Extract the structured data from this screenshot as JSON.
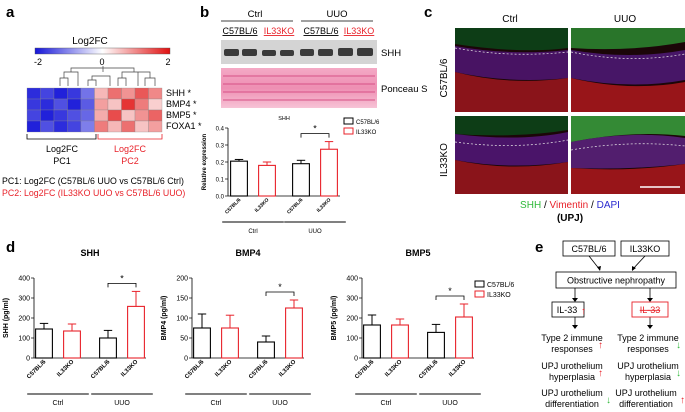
{
  "panel_labels": [
    "a",
    "b",
    "c",
    "d",
    "e"
  ],
  "colors": {
    "red": "#e8222a",
    "blue": "#2b2bd0",
    "green": "#2fb93a",
    "black": "#000000"
  },
  "panel_a": {
    "colorbar_title": "Log2FC",
    "colorbar_ticks": [
      "-2",
      "0",
      "2"
    ],
    "genes": [
      "SHH *",
      "BMP4 *",
      "BMP5 *",
      "FOXA1 *"
    ],
    "pc1": [
      "Log2FC",
      "PC1"
    ],
    "pc2": [
      "Log2FC",
      "PC2"
    ],
    "legend_pc1": "PC1: Log2FC (C57BL/6 UUO vs C57BL/6 Ctrl)",
    "legend_pc2": "PC2: Log2FC (IL33KO UUO vs C57BL/6 UUO)"
  },
  "panel_b": {
    "groups": [
      "Ctrl",
      "UUO"
    ],
    "lanes": [
      "C57BL/6",
      "IL33KO",
      "C57BL/6",
      "IL33KO"
    ],
    "band_labels": [
      "SHH",
      "Ponceau S"
    ]
  },
  "panel_c": {
    "cols": [
      "Ctrl",
      "UUO"
    ],
    "rows": [
      "C57BL/6",
      "IL33KO"
    ],
    "caption_parts": [
      "SHH",
      " / ",
      "Vimentin",
      " / ",
      "DAPI"
    ],
    "caption2": "(UPJ)"
  },
  "panel_e": {
    "top": [
      "C57BL/6",
      "IL33KO"
    ],
    "mid": "Obstructive nephropathy",
    "il33": [
      "IL-33",
      "IL-33"
    ],
    "rows": [
      [
        "Type 2 immune",
        "responses"
      ],
      [
        "UPJ urothelium",
        "hyperplasia"
      ],
      [
        "UPJ urothelium",
        "differentiation"
      ]
    ]
  },
  "chart_data": [
    {
      "type": "bar",
      "title": "SHH",
      "ylabel": "Relative expression",
      "categories": [
        "C57BL/6",
        "IL33KO",
        "C57BL/6",
        "IL33KO"
      ],
      "groups": [
        "Ctrl",
        "UUO"
      ],
      "legend": [
        "C57BL/6",
        "IL33KO"
      ],
      "values": [
        0.205,
        0.18,
        0.19,
        0.275
      ],
      "errors": [
        0.01,
        0.02,
        0.02,
        0.045
      ],
      "ylim": [
        0,
        0.4
      ],
      "yticks": [
        "0.0",
        "0.1",
        "0.2",
        "0.3",
        "0.4"
      ],
      "significance": "*"
    },
    {
      "type": "bar",
      "title": "SHH",
      "ylabel": "SHH (pg/ml)",
      "categories": [
        "C57BL/6",
        "IL33KO",
        "C57BL/6",
        "IL33KO"
      ],
      "groups": [
        "Ctrl",
        "UUO"
      ],
      "values": [
        145,
        135,
        100,
        258
      ],
      "errors": [
        28,
        35,
        38,
        75
      ],
      "ylim": [
        0,
        400
      ],
      "yticks": [
        "0",
        "100",
        "200",
        "300",
        "400"
      ],
      "significance": "*"
    },
    {
      "type": "bar",
      "title": "BMP4",
      "ylabel": "BMP4 (pg/ml)",
      "categories": [
        "C57BL/6",
        "IL33KO",
        "C57BL/6",
        "IL33KO"
      ],
      "groups": [
        "Ctrl",
        "UUO"
      ],
      "values": [
        75,
        75,
        40,
        125
      ],
      "errors": [
        35,
        32,
        15,
        20
      ],
      "ylim": [
        0,
        200
      ],
      "yticks": [
        "0",
        "50",
        "100",
        "150",
        "200"
      ],
      "significance": "*"
    },
    {
      "type": "bar",
      "title": "BMP5",
      "ylabel": "BMP5 (pg/ml)",
      "categories": [
        "C57BL/6",
        "IL33KO",
        "C57BL/6",
        "IL33KO"
      ],
      "groups": [
        "Ctrl",
        "UUO"
      ],
      "legend": [
        "C57BL/6",
        "IL33KO"
      ],
      "values": [
        165,
        165,
        128,
        205
      ],
      "errors": [
        50,
        30,
        40,
        65
      ],
      "ylim": [
        0,
        400
      ],
      "yticks": [
        "0",
        "100",
        "200",
        "300",
        "400"
      ],
      "significance": "*"
    }
  ]
}
